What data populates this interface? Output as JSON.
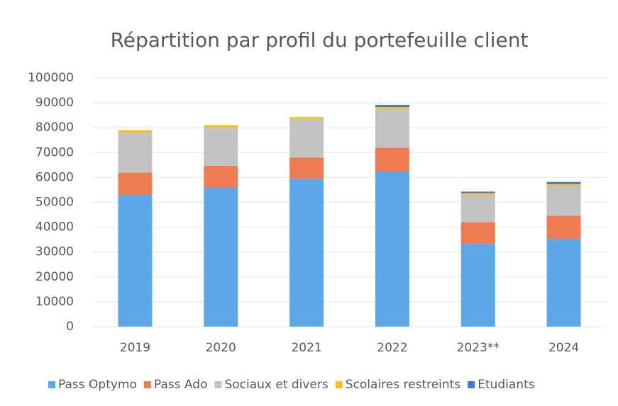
{
  "chart_data": {
    "type": "stacked_bar",
    "title": "Répartition par profil du portefeuille client",
    "categories": [
      "2019",
      "2020",
      "2021",
      "2022",
      "2023**",
      "2024"
    ],
    "series": [
      {
        "name": "Pass Optymo",
        "color": "#5ba7e8",
        "values": [
          53000,
          56000,
          59500,
          62400,
          33300,
          35300
        ]
      },
      {
        "name": "Pass Ado",
        "color": "#ee7b52",
        "values": [
          9000,
          8700,
          8500,
          9600,
          8700,
          9300
        ]
      },
      {
        "name": "Sociaux et divers",
        "color": "#c3c3c3",
        "values": [
          16000,
          15300,
          15500,
          15500,
          11000,
          11900
        ]
      },
      {
        "name": "Scolaires restreints",
        "color": "#f7bf1e",
        "values": [
          1000,
          1000,
          800,
          800,
          700,
          800
        ]
      },
      {
        "name": "Etudiants",
        "color": "#4a78c9",
        "values": [
          0,
          0,
          0,
          900,
          600,
          900
        ]
      }
    ],
    "ylim": [
      0,
      100000
    ],
    "yticks": [
      0,
      10000,
      20000,
      30000,
      40000,
      50000,
      60000,
      70000,
      80000,
      90000,
      100000
    ],
    "grid": true,
    "legend": "bottom"
  }
}
